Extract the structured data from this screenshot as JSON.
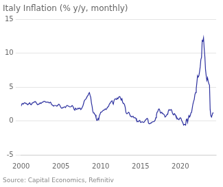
{
  "chart_data": {
    "type": "line",
    "title": "Italy Inflation (% y/y, monthly)",
    "annotations": [
      "Source: Capital Economics, Refinitiv"
    ],
    "color": "#2b2f9e",
    "xlim": [
      2000,
      2024.5
    ],
    "xticks": [
      2000,
      2005,
      2010,
      2015,
      2020
    ],
    "ylim": [
      -5,
      15
    ],
    "yticks": [
      -5,
      0,
      5,
      10,
      15
    ],
    "grid": "y",
    "x": [
      2000.0,
      2000.083,
      2000.167,
      2000.25,
      2000.333,
      2000.417,
      2000.5,
      2000.583,
      2000.667,
      2000.75,
      2000.833,
      2000.917,
      2001.0,
      2001.083,
      2001.167,
      2001.25,
      2001.333,
      2001.417,
      2001.5,
      2001.583,
      2001.667,
      2001.75,
      2001.833,
      2001.917,
      2002.0,
      2002.083,
      2002.167,
      2002.25,
      2002.333,
      2002.417,
      2002.5,
      2002.583,
      2002.667,
      2002.75,
      2002.833,
      2002.917,
      2003.0,
      2003.083,
      2003.167,
      2003.25,
      2003.333,
      2003.417,
      2003.5,
      2003.583,
      2003.667,
      2003.75,
      2003.833,
      2003.917,
      2004.0,
      2004.083,
      2004.167,
      2004.25,
      2004.333,
      2004.417,
      2004.5,
      2004.583,
      2004.667,
      2004.75,
      2004.833,
      2004.917,
      2005.0,
      2005.083,
      2005.167,
      2005.25,
      2005.333,
      2005.417,
      2005.5,
      2005.583,
      2005.667,
      2005.75,
      2005.833,
      2005.917,
      2006.0,
      2006.083,
      2006.167,
      2006.25,
      2006.333,
      2006.417,
      2006.5,
      2006.583,
      2006.667,
      2006.75,
      2006.833,
      2006.917,
      2007.0,
      2007.083,
      2007.167,
      2007.25,
      2007.333,
      2007.417,
      2007.5,
      2007.583,
      2007.667,
      2007.75,
      2007.833,
      2007.917,
      2008.0,
      2008.083,
      2008.167,
      2008.25,
      2008.333,
      2008.417,
      2008.5,
      2008.583,
      2008.667,
      2008.75,
      2008.833,
      2008.917,
      2009.0,
      2009.083,
      2009.167,
      2009.25,
      2009.333,
      2009.417,
      2009.5,
      2009.583,
      2009.667,
      2009.75,
      2009.833,
      2009.917,
      2010.0,
      2010.083,
      2010.167,
      2010.25,
      2010.333,
      2010.417,
      2010.5,
      2010.583,
      2010.667,
      2010.75,
      2010.833,
      2010.917,
      2011.0,
      2011.083,
      2011.167,
      2011.25,
      2011.333,
      2011.417,
      2011.5,
      2011.583,
      2011.667,
      2011.75,
      2011.833,
      2011.917,
      2012.0,
      2012.083,
      2012.167,
      2012.25,
      2012.333,
      2012.417,
      2012.5,
      2012.583,
      2012.667,
      2012.75,
      2012.833,
      2012.917,
      2013.0,
      2013.083,
      2013.167,
      2013.25,
      2013.333,
      2013.417,
      2013.5,
      2013.583,
      2013.667,
      2013.75,
      2013.833,
      2013.917,
      2014.0,
      2014.083,
      2014.167,
      2014.25,
      2014.333,
      2014.417,
      2014.5,
      2014.583,
      2014.667,
      2014.75,
      2014.833,
      2014.917,
      2015.0,
      2015.083,
      2015.167,
      2015.25,
      2015.333,
      2015.417,
      2015.5,
      2015.583,
      2015.667,
      2015.75,
      2015.833,
      2015.917,
      2016.0,
      2016.083,
      2016.167,
      2016.25,
      2016.333,
      2016.417,
      2016.5,
      2016.583,
      2016.667,
      2016.75,
      2016.833,
      2016.917,
      2017.0,
      2017.083,
      2017.167,
      2017.25,
      2017.333,
      2017.417,
      2017.5,
      2017.583,
      2017.667,
      2017.75,
      2017.833,
      2017.917,
      2018.0,
      2018.083,
      2018.167,
      2018.25,
      2018.333,
      2018.417,
      2018.5,
      2018.583,
      2018.667,
      2018.75,
      2018.833,
      2018.917,
      2019.0,
      2019.083,
      2019.167,
      2019.25,
      2019.333,
      2019.417,
      2019.5,
      2019.583,
      2019.667,
      2019.75,
      2019.833,
      2019.917,
      2020.0,
      2020.083,
      2020.167,
      2020.25,
      2020.333,
      2020.417,
      2020.5,
      2020.583,
      2020.667,
      2020.75,
      2020.833,
      2020.917,
      2021.0,
      2021.083,
      2021.167,
      2021.25,
      2021.333,
      2021.417,
      2021.5,
      2021.583,
      2021.667,
      2021.75,
      2021.833,
      2021.917,
      2022.0,
      2022.083,
      2022.167,
      2022.25,
      2022.333,
      2022.417,
      2022.5,
      2022.583,
      2022.667,
      2022.75,
      2022.833,
      2022.917,
      2023.0,
      2023.083,
      2023.167,
      2023.25,
      2023.333,
      2023.417,
      2023.5,
      2023.583,
      2023.667,
      2023.75,
      2023.833,
      2023.917,
      2024.0,
      2024.083,
      2024.167
    ],
    "values": [
      2.2,
      2.5,
      2.6,
      2.5,
      2.6,
      2.7,
      2.7,
      2.6,
      2.6,
      2.5,
      2.4,
      2.5,
      2.6,
      2.7,
      2.5,
      2.4,
      2.5,
      2.7,
      2.7,
      2.8,
      2.8,
      2.9,
      2.8,
      2.7,
      2.5,
      2.4,
      2.5,
      2.5,
      2.6,
      2.7,
      2.6,
      2.7,
      2.8,
      2.8,
      2.9,
      2.9,
      2.9,
      2.8,
      2.8,
      2.8,
      2.8,
      2.8,
      2.7,
      2.7,
      2.8,
      2.7,
      2.4,
      2.4,
      2.3,
      2.2,
      2.3,
      2.3,
      2.3,
      2.3,
      2.2,
      2.3,
      2.4,
      2.5,
      2.4,
      2.2,
      2.0,
      1.9,
      1.9,
      2.0,
      2.0,
      2.1,
      2.1,
      2.0,
      2.2,
      2.3,
      2.3,
      2.2,
      2.2,
      2.1,
      2.1,
      2.1,
      2.2,
      2.3,
      2.2,
      2.0,
      1.7,
      1.6,
      1.9,
      1.9,
      1.7,
      1.8,
      1.9,
      1.8,
      1.9,
      1.9,
      1.7,
      1.8,
      2.0,
      2.2,
      2.5,
      2.9,
      3.1,
      3.2,
      3.3,
      3.5,
      3.7,
      3.8,
      4.1,
      4.2,
      3.8,
      3.5,
      2.7,
      2.2,
      1.5,
      1.2,
      1.2,
      1.0,
      0.9,
      0.5,
      0.1,
      0.1,
      0.4,
      0.2,
      0.8,
      1.0,
      1.3,
      1.3,
      1.4,
      1.5,
      1.6,
      1.6,
      1.7,
      1.8,
      1.7,
      1.8,
      2.0,
      2.1,
      2.2,
      2.5,
      2.6,
      2.8,
      2.9,
      3.0,
      2.7,
      2.5,
      3.0,
      3.2,
      3.3,
      3.3,
      3.2,
      3.4,
      3.3,
      3.5,
      3.6,
      3.6,
      3.3,
      3.1,
      3.3,
      2.8,
      2.6,
      2.6,
      2.4,
      2.0,
      1.3,
      1.1,
      1.1,
      1.2,
      1.3,
      1.2,
      0.9,
      0.7,
      0.7,
      0.6,
      0.7,
      0.7,
      0.5,
      0.5,
      0.5,
      0.4,
      0.1,
      0.0,
      -0.1,
      -0.1,
      0.1,
      0.1,
      -0.2,
      -0.2,
      -0.1,
      -0.1,
      -0.2,
      -0.2,
      -0.1,
      0.1,
      0.2,
      0.3,
      0.4,
      0.3,
      -0.3,
      -0.4,
      -0.4,
      -0.3,
      -0.3,
      -0.2,
      -0.1,
      -0.1,
      -0.1,
      0.0,
      0.1,
      0.5,
      0.9,
      1.3,
      1.4,
      1.7,
      1.8,
      1.6,
      1.2,
      1.2,
      1.3,
      1.1,
      1.1,
      1.0,
      0.9,
      0.6,
      0.7,
      0.8,
      1.0,
      1.0,
      1.5,
      1.7,
      1.6,
      1.6,
      1.7,
      1.6,
      1.2,
      1.0,
      0.9,
      1.1,
      1.0,
      0.8,
      0.5,
      0.5,
      0.3,
      0.3,
      0.2,
      0.4,
      0.5,
      0.4,
      0.1,
      -0.1,
      -0.3,
      -0.6,
      -0.5,
      -0.5,
      -0.6,
      0.2,
      0.3,
      -0.2,
      0.4,
      0.8,
      0.6,
      0.8,
      1.2,
      1.3,
      1.9,
      2.5,
      2.9,
      3.2,
      3.9,
      4.2,
      4.8,
      5.7,
      6.7,
      6.5,
      6.7,
      7.3,
      8.0,
      9.1,
      9.4,
      11.9,
      11.8,
      12.3,
      10.7,
      9.5,
      7.6,
      6.7,
      6.0,
      6.4,
      5.9,
      5.5,
      5.3,
      1.7,
      0.8,
      0.6,
      0.9,
      1.2,
      1.2
    ]
  }
}
